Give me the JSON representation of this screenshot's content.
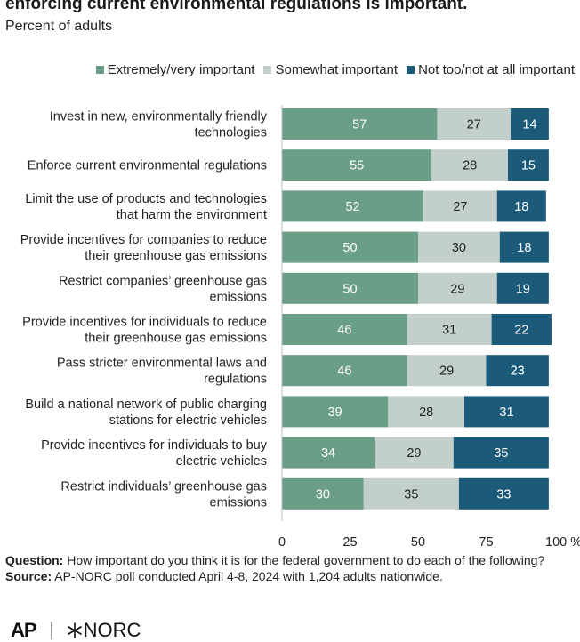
{
  "header": {
    "title": "enforcing current environmental regulations is important.",
    "subtitle": "Percent of adults"
  },
  "colors": {
    "extremely": "#6a9e86",
    "somewhat": "#c3cfca",
    "not": "#1b5a78"
  },
  "chart_data": {
    "type": "bar",
    "orientation": "horizontal",
    "stacked": true,
    "categories": [
      [
        "Invest in new, environmentally friendly",
        "technologies"
      ],
      [
        "Enforce current environmental regulations"
      ],
      [
        "Limit the use of products and technologies",
        "that harm the environment"
      ],
      [
        "Provide incentives for companies to reduce",
        "their greenhouse gas emissions"
      ],
      [
        "Restrict companies’ greenhouse gas",
        "emissions"
      ],
      [
        "Provide incentives for individuals to reduce",
        "their greenhouse gas emissions"
      ],
      [
        "Pass stricter environmental laws and",
        "regulations"
      ],
      [
        "Build a national network of public charging",
        "stations for electric vehicles"
      ],
      [
        "Provide incentives for individuals to buy",
        "electric vehicles"
      ],
      [
        "Restrict individuals’ greenhouse gas",
        "emissions"
      ]
    ],
    "series": [
      {
        "name": "Extremely/very important",
        "values": [
          57,
          55,
          52,
          50,
          50,
          46,
          46,
          39,
          34,
          30
        ]
      },
      {
        "name": "Somewhat important",
        "values": [
          27,
          28,
          27,
          30,
          29,
          31,
          29,
          28,
          29,
          35
        ]
      },
      {
        "name": "Not too/not at all important",
        "values": [
          14,
          15,
          18,
          18,
          19,
          22,
          23,
          31,
          35,
          33
        ]
      }
    ],
    "x_ticks": [
      "0",
      "25",
      "50",
      "75",
      "100 %"
    ],
    "xlim": [
      0,
      100
    ],
    "grid": false,
    "legend_position": "top-right"
  },
  "footer": {
    "question_label": "Question:",
    "question_text": "How important do you think it is for the federal government to do each of the following?",
    "source_label": "Source:",
    "source_text": "AP-NORC poll conducted April 4-8, 2024 with 1,204 adults nationwide."
  },
  "logos": {
    "ap": "AP",
    "norc": "NORC"
  }
}
